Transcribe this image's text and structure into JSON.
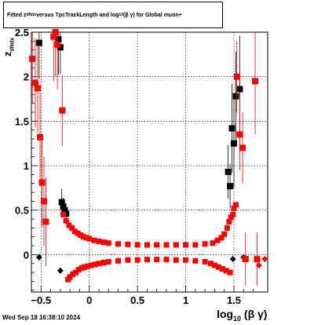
{
  "title": {
    "part1": "Fitted  z",
    "sub1": "dNdx",
    "part2": "  versus TpcTrackLength and log",
    "sub2": "10",
    "part3": "(β γ) for Global muon+"
  },
  "date_stamp": "Wed Sep 18 16:38:10 2024",
  "axis_labels": {
    "x_main": "log",
    "x_sub": "10",
    "x_tail": "(β γ)",
    "y_main": "z",
    "y_sub": "dNdx"
  },
  "colors": {
    "series_a": "#000000",
    "series_b": "#ff0000",
    "grid": "#000000"
  },
  "chart_data": {
    "type": "scatter",
    "xlim": [
      -0.6,
      1.85
    ],
    "ylim": [
      -0.42,
      2.5
    ],
    "x_ticks": [
      -0.5,
      0,
      0.5,
      1,
      1.5
    ],
    "x_tick_labels": [
      "−0.5",
      "0",
      "0.5",
      "1",
      "1.5"
    ],
    "y_ticks": [
      0,
      0.5,
      1,
      1.5,
      2,
      2.5
    ],
    "y_tick_labels": [
      "0",
      "0.5",
      "1",
      "1.5",
      "2",
      "2.5"
    ],
    "grid": true,
    "series": [
      {
        "marker": "black-square",
        "points": [
          {
            "x": -0.52,
            "y": 2.38,
            "e": 0.4
          },
          {
            "x": -0.32,
            "y": 2.42,
            "e": 0.4
          },
          {
            "x": -0.3,
            "y": 2.33,
            "e": 0.3
          },
          {
            "x": -0.285,
            "y": 0.59,
            "e": 0.15
          },
          {
            "x": -0.27,
            "y": 0.54,
            "e": 0.1
          },
          {
            "x": -0.255,
            "y": 0.5,
            "e": 0.08
          },
          {
            "x": -0.24,
            "y": 0.46,
            "e": 0.06
          },
          {
            "x": 1.44,
            "y": 0.93,
            "e": 0.3
          },
          {
            "x": 1.46,
            "y": 0.77,
            "e": 0.25
          },
          {
            "x": 1.48,
            "y": 1.42,
            "e": 0.5
          },
          {
            "x": 1.5,
            "y": 1.25,
            "e": 0.5
          },
          {
            "x": 1.52,
            "y": 1.78,
            "e": 0.5
          },
          {
            "x": 1.56,
            "y": 1.86,
            "e": 0.6
          }
        ]
      },
      {
        "marker": "black-diamond",
        "points": [
          {
            "x": -0.52,
            "y": -0.03
          },
          {
            "x": -0.3,
            "y": -0.18
          },
          {
            "x": 1.49,
            "y": -0.05
          },
          {
            "x": 1.6,
            "y": -0.03
          }
        ]
      },
      {
        "marker": "red-square",
        "points": [
          {
            "x": -0.59,
            "y": 2.2,
            "e": 0.5
          },
          {
            "x": -0.56,
            "y": 1.93,
            "e": 0.5
          },
          {
            "x": -0.535,
            "y": 1.87,
            "e": 0.5
          },
          {
            "x": -0.51,
            "y": 1.32,
            "e": 0.5
          },
          {
            "x": -0.49,
            "y": 0.81,
            "e": 0.5
          },
          {
            "x": -0.47,
            "y": 0.6,
            "e": 0.5
          },
          {
            "x": -0.45,
            "y": 0.37,
            "e": 0.5
          },
          {
            "x": -0.37,
            "y": 2.45,
            "e": 0.5
          },
          {
            "x": -0.35,
            "y": 2.5,
            "e": 0.5
          },
          {
            "x": -0.33,
            "y": 2.36,
            "e": 0.5
          },
          {
            "x": -0.28,
            "y": 1.62,
            "e": 0.4
          },
          {
            "x": 1.53,
            "y": 2.0,
            "e": 0.4
          },
          {
            "x": 1.56,
            "y": 1.35,
            "e": 0.4
          },
          {
            "x": 1.59,
            "y": 1.2,
            "e": 0.4
          },
          {
            "x": 1.72,
            "y": 1.95,
            "e": 0.6
          },
          {
            "x": 1.62,
            "y": -0.05,
            "e": 0.3
          },
          {
            "x": 1.74,
            "y": -0.05,
            "e": 0.3
          }
        ]
      },
      {
        "marker": "red-diamond",
        "points": [
          {
            "x": 1.76,
            "y": -0.12
          },
          {
            "x": 1.82,
            "y": -0.05
          }
        ]
      },
      {
        "marker": "red-upper-band",
        "points": [
          {
            "x": -0.27,
            "y": 0.45
          },
          {
            "x": -0.24,
            "y": 0.38
          },
          {
            "x": -0.21,
            "y": 0.33
          },
          {
            "x": -0.18,
            "y": 0.3
          },
          {
            "x": -0.15,
            "y": 0.26
          },
          {
            "x": -0.12,
            "y": 0.24
          },
          {
            "x": -0.09,
            "y": 0.22
          },
          {
            "x": -0.06,
            "y": 0.2
          },
          {
            "x": -0.03,
            "y": 0.19
          },
          {
            "x": 0.0,
            "y": 0.18
          },
          {
            "x": 0.05,
            "y": 0.16
          },
          {
            "x": 0.1,
            "y": 0.15
          },
          {
            "x": 0.15,
            "y": 0.14
          },
          {
            "x": 0.2,
            "y": 0.13
          },
          {
            "x": 0.3,
            "y": 0.12
          },
          {
            "x": 0.4,
            "y": 0.115
          },
          {
            "x": 0.5,
            "y": 0.11
          },
          {
            "x": 0.6,
            "y": 0.11
          },
          {
            "x": 0.7,
            "y": 0.11
          },
          {
            "x": 0.8,
            "y": 0.11
          },
          {
            "x": 0.9,
            "y": 0.11
          },
          {
            "x": 1.0,
            "y": 0.11
          },
          {
            "x": 1.1,
            "y": 0.11
          },
          {
            "x": 1.2,
            "y": 0.12
          },
          {
            "x": 1.28,
            "y": 0.13
          },
          {
            "x": 1.33,
            "y": 0.16
          },
          {
            "x": 1.37,
            "y": 0.19
          },
          {
            "x": 1.4,
            "y": 0.23
          },
          {
            "x": 1.43,
            "y": 0.3
          },
          {
            "x": 1.45,
            "y": 0.37
          },
          {
            "x": 1.47,
            "y": 0.42
          },
          {
            "x": 1.49,
            "y": 0.45
          },
          {
            "x": 1.5,
            "y": 0.52
          },
          {
            "x": 1.52,
            "y": 0.56
          }
        ]
      },
      {
        "marker": "red-lower-band",
        "points": [
          {
            "x": -0.22,
            "y": -0.28
          },
          {
            "x": -0.2,
            "y": -0.25
          },
          {
            "x": -0.17,
            "y": -0.22
          },
          {
            "x": -0.14,
            "y": -0.2
          },
          {
            "x": -0.11,
            "y": -0.17
          },
          {
            "x": -0.08,
            "y": -0.15
          },
          {
            "x": -0.05,
            "y": -0.14
          },
          {
            "x": -0.02,
            "y": -0.13
          },
          {
            "x": 0.02,
            "y": -0.12
          },
          {
            "x": 0.06,
            "y": -0.11
          },
          {
            "x": 0.1,
            "y": -0.1
          },
          {
            "x": 0.15,
            "y": -0.09
          },
          {
            "x": 0.2,
            "y": -0.08
          },
          {
            "x": 0.3,
            "y": -0.07
          },
          {
            "x": 0.4,
            "y": -0.06
          },
          {
            "x": 0.5,
            "y": -0.06
          },
          {
            "x": 0.6,
            "y": -0.055
          },
          {
            "x": 0.7,
            "y": -0.055
          },
          {
            "x": 0.8,
            "y": -0.055
          },
          {
            "x": 0.9,
            "y": -0.06
          },
          {
            "x": 1.0,
            "y": -0.06
          },
          {
            "x": 1.1,
            "y": -0.07
          },
          {
            "x": 1.2,
            "y": -0.08
          },
          {
            "x": 1.26,
            "y": -0.1
          },
          {
            "x": 1.3,
            "y": -0.12
          },
          {
            "x": 1.34,
            "y": -0.14
          },
          {
            "x": 1.38,
            "y": -0.16
          },
          {
            "x": 1.42,
            "y": -0.18
          },
          {
            "x": 1.46,
            "y": -0.2
          }
        ]
      }
    ]
  }
}
